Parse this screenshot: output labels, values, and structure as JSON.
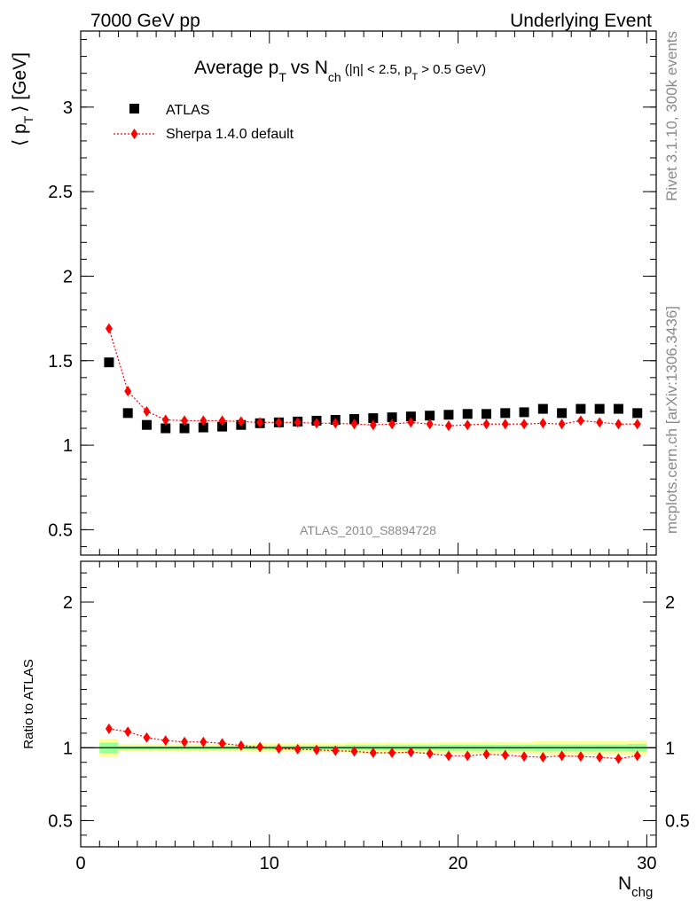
{
  "header": {
    "left": "7000 GeV pp",
    "right": "Underlying Event"
  },
  "side_text": {
    "rivet": "Rivet 3.1.10,  300k events",
    "mcplots": "mcplots.cern.ch [arXiv:1306.3436]"
  },
  "chart_data": [
    {
      "type": "scatter",
      "title": "Average pT vs Nch (|η| < 2.5, pT > 0.5 GeV)",
      "title_parts": {
        "main": "Average p",
        "main_sub": "T",
        "vs": "vs N",
        "vs_sub": "ch",
        "cuts_a": "(|η| < 2.5, p",
        "cuts_sub": "T",
        "cuts_b": "> 0.5 GeV)"
      },
      "ylabel": "⟨ pT ⟩ [GeV]",
      "ylabel_parts": {
        "pre": "⟨ p",
        "sub": "T",
        "post": "⟩ [GeV]"
      },
      "xlim": [
        0,
        30.5
      ],
      "ylim": [
        0.35,
        3.45
      ],
      "yticks": [
        0.5,
        1,
        1.5,
        2,
        2.5,
        3
      ],
      "ytick_labels": [
        "0.5",
        "1",
        "1.5",
        "2",
        "2.5",
        "3"
      ],
      "watermark": "ATLAS_2010_S8894728",
      "legend": {
        "placement": "top-left",
        "entries": [
          "ATLAS",
          "Sherpa 1.4.0 default"
        ]
      },
      "x": [
        1.5,
        2.5,
        3.5,
        4.5,
        5.5,
        6.5,
        7.5,
        8.5,
        9.5,
        10.5,
        11.5,
        12.5,
        13.5,
        14.5,
        15.5,
        16.5,
        17.5,
        18.5,
        19.5,
        20.5,
        21.5,
        22.5,
        23.5,
        24.5,
        25.5,
        26.5,
        27.5,
        28.5,
        29.5
      ],
      "series": [
        {
          "name": "ATLAS",
          "marker": "square",
          "color": "#000000",
          "values": [
            1.49,
            1.19,
            1.12,
            1.1,
            1.1,
            1.105,
            1.11,
            1.12,
            1.13,
            1.135,
            1.14,
            1.145,
            1.15,
            1.155,
            1.16,
            1.165,
            1.17,
            1.175,
            1.18,
            1.185,
            1.185,
            1.19,
            1.195,
            1.215,
            1.19,
            1.215,
            1.215,
            1.215,
            1.19
          ]
        },
        {
          "name": "Sherpa 1.4.0 default",
          "marker": "diamond",
          "color": "#ff0000",
          "values": [
            1.69,
            1.32,
            1.2,
            1.15,
            1.145,
            1.145,
            1.145,
            1.14,
            1.135,
            1.135,
            1.135,
            1.13,
            1.13,
            1.125,
            1.12,
            1.125,
            1.135,
            1.125,
            1.115,
            1.12,
            1.125,
            1.125,
            1.125,
            1.13,
            1.125,
            1.145,
            1.135,
            1.125,
            1.125
          ]
        }
      ]
    },
    {
      "type": "scatter",
      "ylabel": "Ratio to ATLAS",
      "xlabel": "Nchg",
      "xlabel_parts": {
        "main": "N",
        "sub": "chg"
      },
      "xlim": [
        0,
        30.5
      ],
      "ylim": [
        0.32,
        2.28
      ],
      "xticks": [
        0,
        10,
        20,
        30
      ],
      "xtick_labels": [
        "0",
        "10",
        "20",
        "30"
      ],
      "yticks": [
        0.5,
        1,
        2
      ],
      "ytick_labels": [
        "0.5",
        "1",
        "2"
      ],
      "reference_line": 1,
      "bands": {
        "yellow_halfwidth": [
          0.06,
          0.025,
          0.025,
          0.025,
          0.025,
          0.025,
          0.025,
          0.025,
          0.03,
          0.03,
          0.03,
          0.03,
          0.03,
          0.035,
          0.035,
          0.035,
          0.035,
          0.035,
          0.04,
          0.04,
          0.04,
          0.04,
          0.04,
          0.045,
          0.045,
          0.045,
          0.045,
          0.045,
          0.05
        ],
        "green_halfwidth": [
          0.035,
          0.012,
          0.012,
          0.012,
          0.012,
          0.012,
          0.012,
          0.012,
          0.015,
          0.015,
          0.015,
          0.015,
          0.015,
          0.018,
          0.018,
          0.018,
          0.018,
          0.018,
          0.02,
          0.02,
          0.02,
          0.02,
          0.02,
          0.022,
          0.022,
          0.022,
          0.022,
          0.022,
          0.025
        ]
      },
      "x": [
        1.5,
        2.5,
        3.5,
        4.5,
        5.5,
        6.5,
        7.5,
        8.5,
        9.5,
        10.5,
        11.5,
        12.5,
        13.5,
        14.5,
        15.5,
        16.5,
        17.5,
        18.5,
        19.5,
        20.5,
        21.5,
        22.5,
        23.5,
        24.5,
        25.5,
        26.5,
        27.5,
        28.5,
        29.5
      ],
      "series": [
        {
          "name": "Sherpa 1.4.0 default",
          "marker": "diamond",
          "color": "#ff0000",
          "values": [
            1.13,
            1.11,
            1.07,
            1.05,
            1.04,
            1.04,
            1.03,
            1.015,
            1.005,
            0.995,
            0.99,
            0.985,
            0.98,
            0.975,
            0.965,
            0.965,
            0.97,
            0.96,
            0.945,
            0.945,
            0.955,
            0.95,
            0.94,
            0.935,
            0.945,
            0.94,
            0.935,
            0.925,
            0.945
          ]
        }
      ]
    }
  ]
}
